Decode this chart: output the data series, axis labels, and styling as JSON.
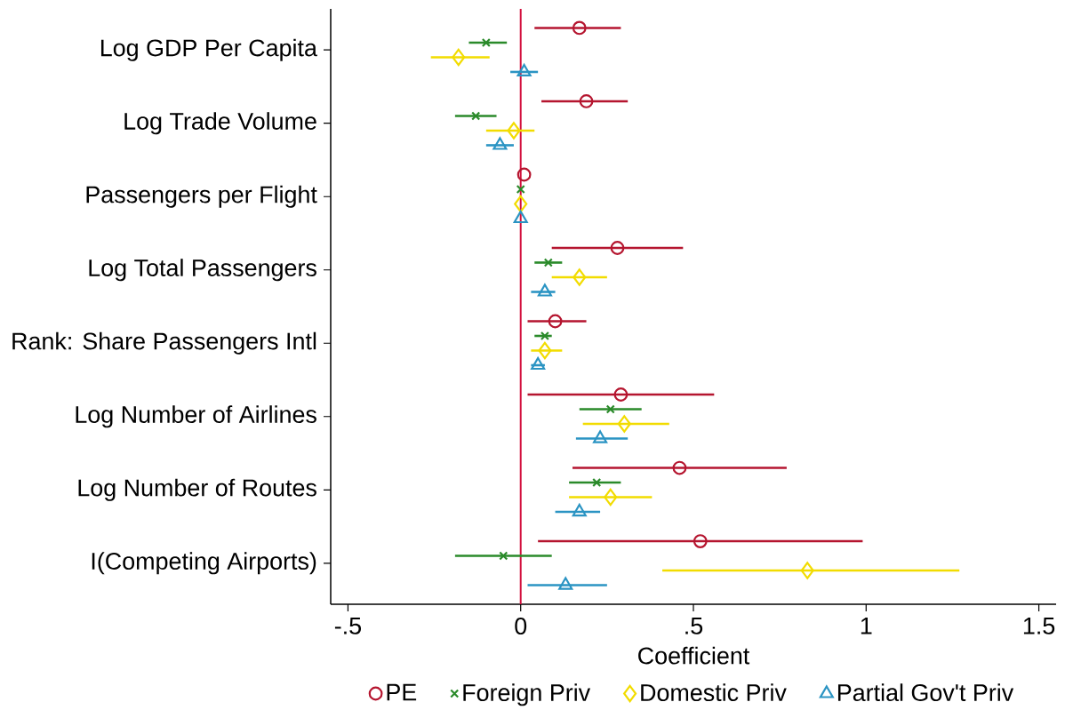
{
  "chart_data": {
    "type": "scatter",
    "orientation": "horizontal",
    "categories": [
      "Log GDP Per Capita",
      "Log Trade Volume",
      "Passengers per Flight",
      "Log Total Passengers",
      "Rank: Share Passengers Intl",
      "Log Number of Airlines",
      "Log Number of Routes",
      "I(Competing Airports)"
    ],
    "xlabel": "Coefficient",
    "xlim": [
      -0.55,
      1.55
    ],
    "xticks": [
      {
        "value": -0.5,
        "label": "-.5"
      },
      0,
      {
        "value": 0.5,
        "label": ".5"
      },
      1,
      1.5
    ],
    "legend": "bottom",
    "ref_lines": [
      {
        "axis": "x",
        "value": 0,
        "color": "#d3123f"
      }
    ],
    "series": [
      {
        "name": "PE",
        "color": "#b5152f",
        "marker": "circle",
        "values": [
          0.17,
          0.19,
          0.01,
          0.28,
          0.1,
          0.29,
          0.46,
          0.52
        ],
        "errors": [
          [
            0.04,
            0.29
          ],
          [
            0.06,
            0.31
          ],
          null,
          [
            0.09,
            0.47
          ],
          [
            0.02,
            0.19
          ],
          [
            0.02,
            0.56
          ],
          [
            0.15,
            0.77
          ],
          [
            0.05,
            0.99
          ]
        ]
      },
      {
        "name": "Foreign Priv",
        "color": "#2a8a2a",
        "marker": "cross",
        "values": [
          -0.1,
          -0.13,
          0.0,
          0.08,
          0.07,
          0.26,
          0.22,
          -0.05
        ],
        "errors": [
          [
            -0.15,
            -0.04
          ],
          [
            -0.19,
            -0.07
          ],
          null,
          [
            0.04,
            0.12
          ],
          [
            0.04,
            0.09
          ],
          [
            0.17,
            0.35
          ],
          [
            0.14,
            0.29
          ],
          [
            -0.19,
            0.09
          ]
        ]
      },
      {
        "name": "Domestic Priv",
        "color": "#f2dc00",
        "marker": "diamond",
        "values": [
          -0.18,
          -0.02,
          0.0,
          0.17,
          0.07,
          0.3,
          0.26,
          0.83
        ],
        "errors": [
          [
            -0.26,
            -0.09
          ],
          [
            -0.1,
            0.04
          ],
          null,
          [
            0.09,
            0.25
          ],
          [
            0.03,
            0.12
          ],
          [
            0.18,
            0.43
          ],
          [
            0.14,
            0.38
          ],
          [
            0.41,
            1.27
          ]
        ]
      },
      {
        "name": "Partial Gov't Priv",
        "color": "#2b94c3",
        "marker": "triangle",
        "values": [
          0.01,
          -0.06,
          0.0,
          0.07,
          0.05,
          0.23,
          0.17,
          0.13
        ],
        "errors": [
          [
            -0.03,
            0.05
          ],
          [
            -0.1,
            -0.02
          ],
          null,
          [
            0.03,
            0.1
          ],
          [
            0.03,
            0.07
          ],
          [
            0.16,
            0.31
          ],
          [
            0.1,
            0.23
          ],
          [
            0.02,
            0.25
          ]
        ]
      }
    ]
  }
}
